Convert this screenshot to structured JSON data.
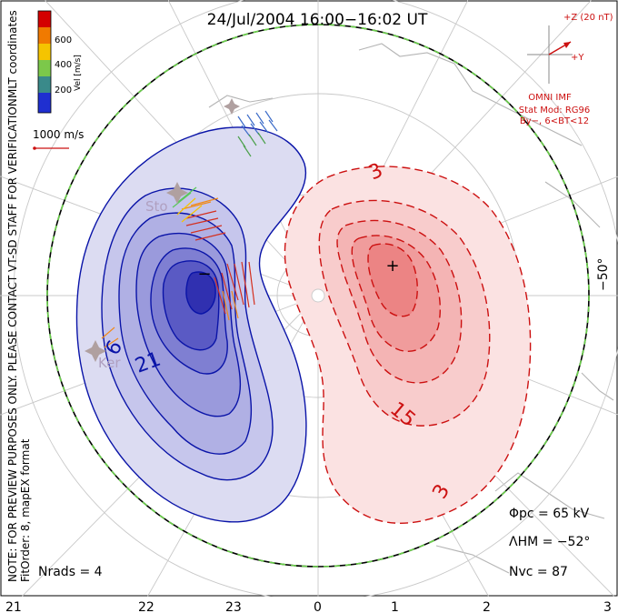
{
  "title": "24/Jul/2004  16:00−16:02  UT",
  "coordinate_label": "MLT coordinates",
  "vertical_note_1": "NOTE: FOR PREVIEW PURPOSES ONLY. PLEASE CONTACT VT-SD STAFF FOR VERIFICATION.",
  "vertical_note_2": "FitOrder: 8, mapEX format",
  "colorbar": {
    "label": "Vel [m/s]",
    "ticks": [
      "600",
      "400",
      "200"
    ],
    "colors": [
      "#d40000",
      "#f07a00",
      "#f5c400",
      "#7cc84a",
      "#3a8a8a",
      "#1f2fd0"
    ]
  },
  "velocity_scale": "1000 m/s",
  "imf": {
    "z_label": "+Z (20 nT)",
    "y_label": "+Y",
    "source": "OMNI IMF",
    "model_line1": "Stat Mod: RG96",
    "model_line2": "By−, 6<BT<12"
  },
  "contour_labels": {
    "neg_label_inner": "6",
    "neg_label_outer": "21",
    "pos_label_outer_top": "3",
    "pos_label_mid": "15",
    "pos_label_outer_bottom": "3"
  },
  "radar_labels": [
    "Sto",
    "Ker"
  ],
  "latitude_label": "−50°",
  "stats": {
    "phi_pc": "Φpc  =  65 kV",
    "lambda_hm": "ΛHM  =  −52°",
    "n_vc": "Nvc  =  87",
    "n_rads": "Nrads  =  4"
  },
  "mlt_axis": [
    "21",
    "22",
    "23",
    "0",
    "1",
    "2",
    "3"
  ],
  "colors": {
    "negative_contour": "#0a14a8",
    "positive_contour": "#cc1010",
    "hm_boundary_dash": "#6ad04a",
    "imf_color": "#cc1010"
  }
}
